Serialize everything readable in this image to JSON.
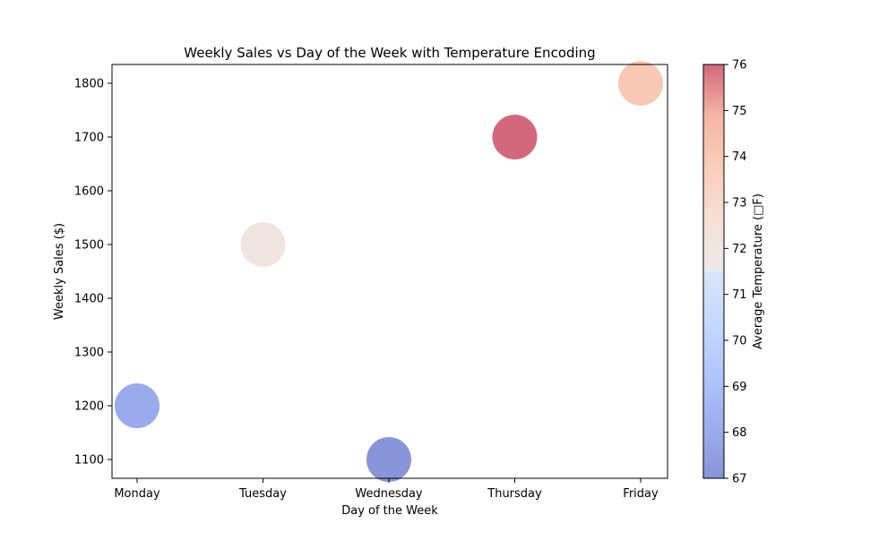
{
  "chart_data": {
    "type": "scatter",
    "title": "Weekly Sales vs Day of the Week with Temperature Encoding",
    "xlabel": "Day of the Week",
    "ylabel": "Weekly Sales ($)",
    "categories": [
      "Monday",
      "Tuesday",
      "Wednesday",
      "Thursday",
      "Friday"
    ],
    "values": [
      1200,
      1500,
      1100,
      1700,
      1800
    ],
    "temperature": [
      68,
      72,
      67,
      76,
      74
    ],
    "ylim": [
      1065,
      1835
    ],
    "yticks": [
      1100,
      1200,
      1300,
      1400,
      1500,
      1600,
      1700,
      1800
    ],
    "grid": false,
    "colormap": "coolwarm",
    "marker_alpha": 0.6,
    "colorbar": {
      "label": "Average Temperature (□F)",
      "range": [
        67,
        76
      ],
      "ticks": [
        67,
        68,
        69,
        70,
        71,
        72,
        73,
        74,
        75,
        76
      ]
    }
  }
}
